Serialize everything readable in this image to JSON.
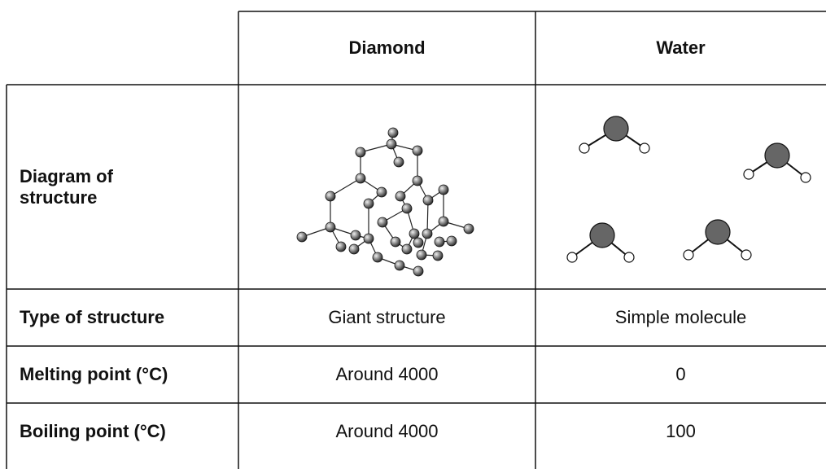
{
  "table": {
    "header": [
      "Diamond",
      "Water"
    ],
    "rows": [
      {
        "label": "Diagram of structure"
      },
      {
        "label": "Type of structure",
        "cells": [
          "Giant structure",
          "Simple molecule"
        ]
      },
      {
        "label": "Melting point (°C)",
        "cells": [
          "Around 4000",
          0
        ]
      },
      {
        "label": "Boiling point (°C)",
        "cells": [
          "Around 4000",
          100
        ]
      }
    ]
  }
}
